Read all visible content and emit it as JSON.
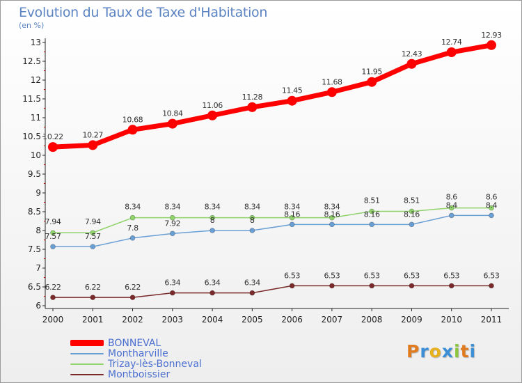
{
  "title": "Evolution du Taux de Taxe d'Habitation",
  "unit_label": "(en %)",
  "logo_text": "Proxiti",
  "logo_colors": [
    "#e07b1e",
    "#3a8fd6",
    "#e8b01e",
    "#3a8fd6",
    "#8cc63f",
    "#e07b1e",
    "#3a8fd6"
  ],
  "chart_data": {
    "type": "line",
    "x": [
      "2000",
      "2001",
      "2002",
      "2003",
      "2004",
      "2005",
      "2006",
      "2007",
      "2008",
      "2009",
      "2010",
      "2011"
    ],
    "ylim": [
      6,
      13
    ],
    "yticks": [
      "6",
      "6.5",
      "7",
      "7.5",
      "8",
      "8.5",
      "9",
      "9.5",
      "10",
      "10.5",
      "11",
      "11.5",
      "12",
      "12.5",
      "13"
    ],
    "grid": false,
    "legend_position": "bottom-left",
    "series": [
      {
        "name": "BONNEVAL",
        "color": "#ff0000",
        "values": [
          10.22,
          10.27,
          10.68,
          10.84,
          11.06,
          11.28,
          11.45,
          11.68,
          11.95,
          12.43,
          12.74,
          12.93
        ],
        "labels": [
          "10.22",
          "10.27",
          "10.68",
          "10.84",
          "11.06",
          "11.28",
          "11.45",
          "11.68",
          "11.95",
          "12.43",
          "12.74",
          "12.93"
        ]
      },
      {
        "name": "Montharville",
        "color": "#6a9fd4",
        "values": [
          7.57,
          7.57,
          7.8,
          7.92,
          8,
          8,
          8.16,
          8.16,
          8.16,
          8.16,
          8.4,
          8.4
        ],
        "labels": [
          "7.57",
          "7.57",
          "7.8",
          "7.92",
          "8",
          "8",
          "8.16",
          "8.16",
          "8.16",
          "8.16",
          "8.4",
          "8.4"
        ]
      },
      {
        "name": "Trizay-lès-Bonneval",
        "color": "#8fd36a",
        "values": [
          7.94,
          7.94,
          8.34,
          8.34,
          8.34,
          8.34,
          8.34,
          8.34,
          8.51,
          8.51,
          8.6,
          8.6
        ],
        "labels": [
          "7.94",
          "7.94",
          "8.34",
          "8.34",
          "8.34",
          "8.34",
          "8.34",
          "8.34",
          "8.51",
          "8.51",
          "8.6",
          "8.6"
        ]
      },
      {
        "name": "Montboissier",
        "color": "#7a2a2a",
        "values": [
          6.22,
          6.22,
          6.22,
          6.34,
          6.34,
          6.34,
          6.53,
          6.53,
          6.53,
          6.53,
          6.53,
          6.53
        ],
        "labels": [
          "6.22",
          "6.22",
          "6.22",
          "6.34",
          "6.34",
          "6.34",
          "6.53",
          "6.53",
          "6.53",
          "6.53",
          "6.53",
          "6.53"
        ]
      }
    ]
  }
}
